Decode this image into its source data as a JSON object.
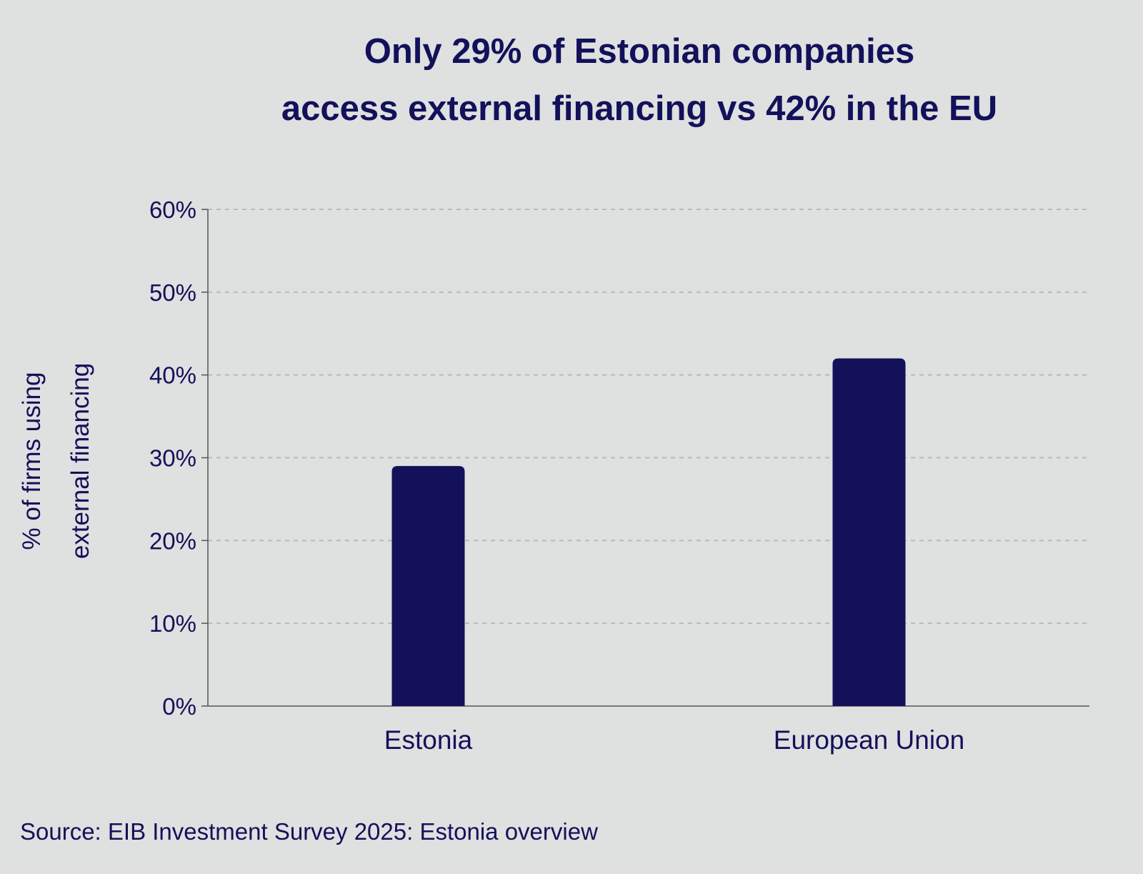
{
  "chart_data": {
    "type": "bar",
    "title_lines": [
      "Only 29% of Estonian companies",
      "access external financing vs 42% in the EU"
    ],
    "ylabel_lines": [
      "% of firms using",
      "external financing"
    ],
    "xlabel": "",
    "categories": [
      "Estonia",
      "European Union"
    ],
    "values": [
      29,
      42
    ],
    "ylim": [
      0,
      60
    ],
    "yticks": [
      0,
      10,
      20,
      30,
      40,
      50,
      60
    ],
    "ytick_labels": [
      "0%",
      "10%",
      "20%",
      "30%",
      "40%",
      "50%",
      "60%"
    ],
    "grid": "horizontal dashed",
    "bar_color": "#12115a",
    "source": "Source: EIB Investment Survey 2025: Estonia overview"
  }
}
